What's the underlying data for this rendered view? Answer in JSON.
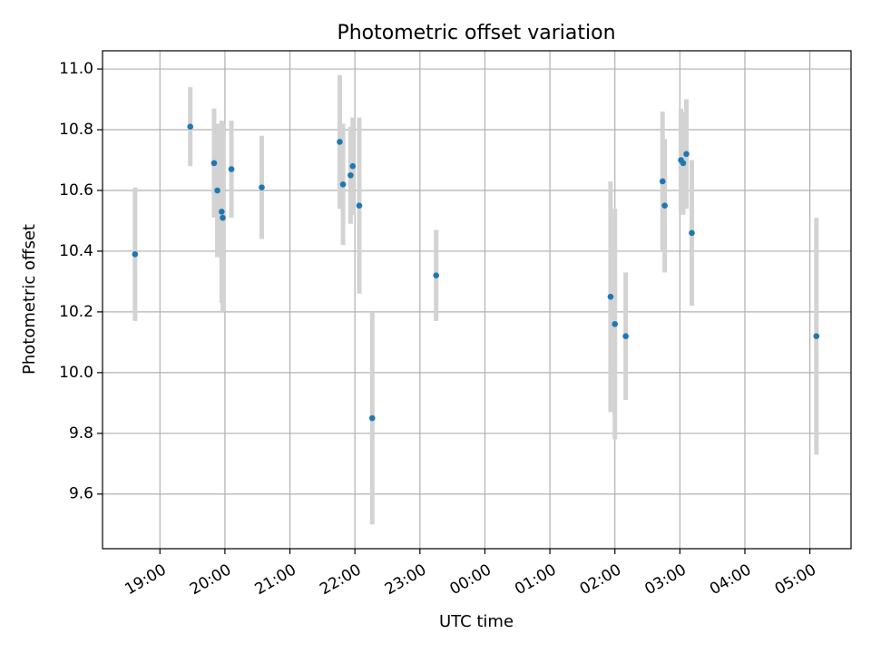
{
  "chart_data": {
    "type": "scatter",
    "title": "Photometric offset variation",
    "xlabel": "UTC time",
    "ylabel": "Photometric offset",
    "grid": true,
    "error_bars": true,
    "colors": {
      "points": "#1f77b4",
      "error_bars": "#d3d3d3",
      "grid": "#b0b0b0",
      "axes": "#000000"
    },
    "xlim": [
      "18:07",
      "05:38"
    ],
    "ylim": [
      9.42,
      11.06
    ],
    "x_ticks": [
      "19:00",
      "20:00",
      "21:00",
      "22:00",
      "23:00",
      "00:00",
      "01:00",
      "02:00",
      "03:00",
      "04:00",
      "05:00"
    ],
    "y_ticks": [
      "9.6",
      "9.8",
      "10.0",
      "10.2",
      "10.4",
      "10.6",
      "10.8",
      "11.0"
    ],
    "points": [
      {
        "x": "18:37",
        "y": 10.39,
        "err": 0.22
      },
      {
        "x": "19:28",
        "y": 10.81,
        "err": 0.13
      },
      {
        "x": "19:50",
        "y": 10.69,
        "err": 0.18
      },
      {
        "x": "19:53",
        "y": 10.6,
        "err": 0.22
      },
      {
        "x": "19:57",
        "y": 10.53,
        "err": 0.3
      },
      {
        "x": "19:58",
        "y": 10.51,
        "err": 0.31
      },
      {
        "x": "20:06",
        "y": 10.67,
        "err": 0.16
      },
      {
        "x": "20:34",
        "y": 10.61,
        "err": 0.17
      },
      {
        "x": "21:46",
        "y": 10.76,
        "err": 0.22
      },
      {
        "x": "21:49",
        "y": 10.62,
        "err": 0.2
      },
      {
        "x": "21:56",
        "y": 10.65,
        "err": 0.16
      },
      {
        "x": "21:58",
        "y": 10.68,
        "err": 0.16
      },
      {
        "x": "22:04",
        "y": 10.55,
        "err": 0.29
      },
      {
        "x": "22:16",
        "y": 9.85,
        "err": 0.35
      },
      {
        "x": "23:15",
        "y": 10.32,
        "err": 0.15
      },
      {
        "x": "01:56",
        "y": 10.25,
        "err": 0.38
      },
      {
        "x": "02:00",
        "y": 10.16,
        "err": 0.38
      },
      {
        "x": "02:10",
        "y": 10.12,
        "err": 0.21
      },
      {
        "x": "02:44",
        "y": 10.63,
        "err": 0.23
      },
      {
        "x": "02:46",
        "y": 10.55,
        "err": 0.22
      },
      {
        "x": "03:01",
        "y": 10.7,
        "err": 0.17
      },
      {
        "x": "03:03",
        "y": 10.69,
        "err": 0.17
      },
      {
        "x": "03:06",
        "y": 10.72,
        "err": 0.18
      },
      {
        "x": "03:11",
        "y": 10.46,
        "err": 0.24
      },
      {
        "x": "05:06",
        "y": 10.12,
        "err": 0.39
      }
    ]
  }
}
